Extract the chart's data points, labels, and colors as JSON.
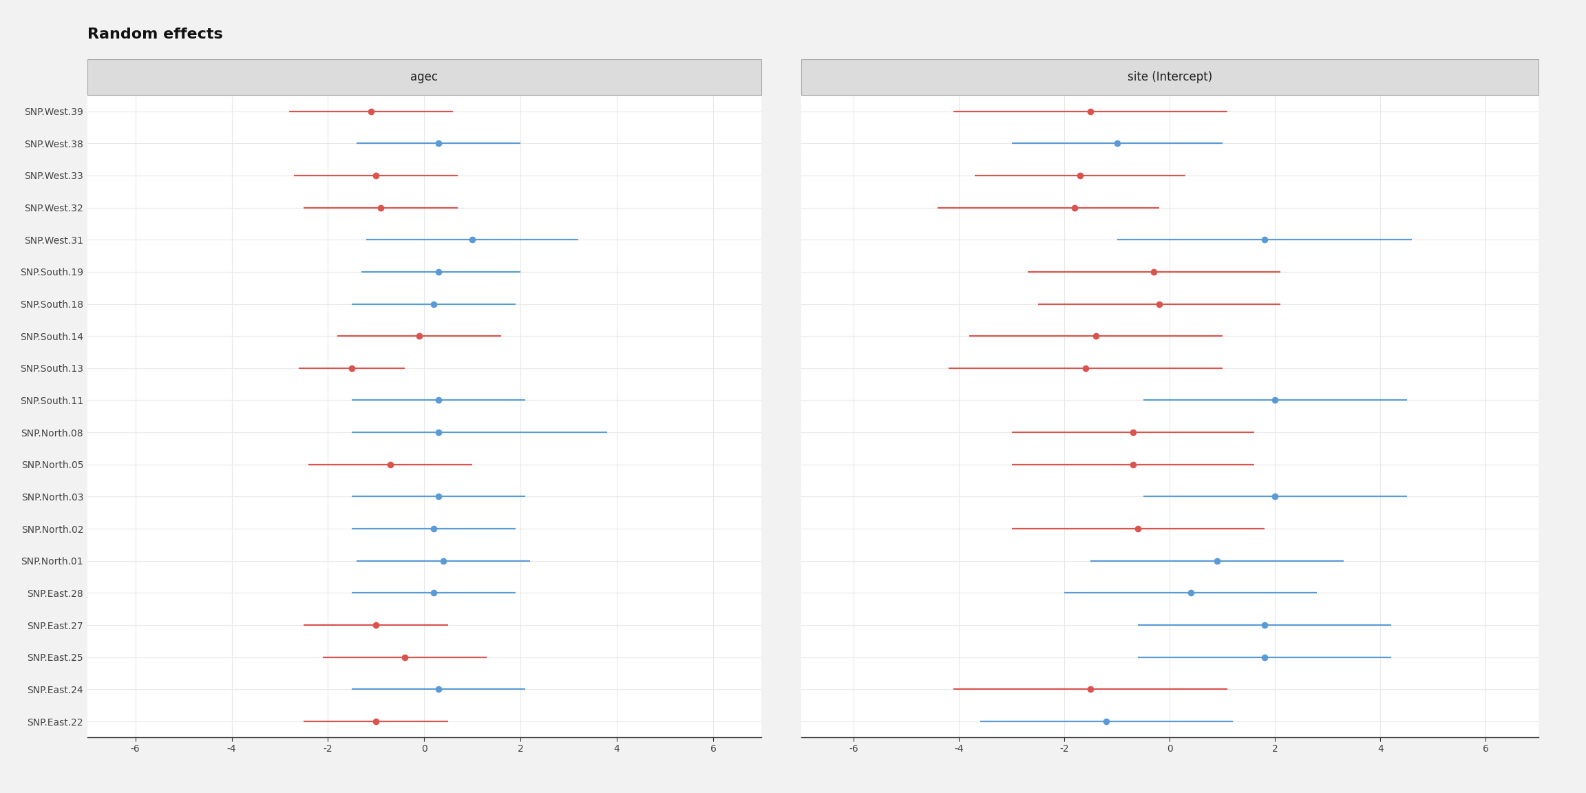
{
  "title": "Random effects",
  "panel1_title": "agec",
  "panel2_title": "site (Intercept)",
  "ylabels": [
    "SNP.West.39",
    "SNP.West.38",
    "SNP.West.33",
    "SNP.West.32",
    "SNP.West.31",
    "SNP.South.19",
    "SNP.South.18",
    "SNP.South.14",
    "SNP.South.13",
    "SNP.South.11",
    "SNP.North.08",
    "SNP.North.05",
    "SNP.North.03",
    "SNP.North.02",
    "SNP.North.01",
    "SNP.East.28",
    "SNP.East.27",
    "SNP.East.25",
    "SNP.East.24",
    "SNP.East.22"
  ],
  "agec": {
    "est": [
      -1.1,
      0.3,
      -1.0,
      -0.9,
      1.0,
      0.3,
      0.2,
      -0.1,
      -1.5,
      0.3,
      0.3,
      -0.7,
      0.3,
      0.2,
      0.4,
      0.2,
      -1.0,
      -0.4,
      0.3,
      -1.0
    ],
    "lo": [
      -2.8,
      -1.4,
      -2.7,
      -2.5,
      -1.2,
      -1.3,
      -1.5,
      -1.8,
      -2.6,
      -1.5,
      -1.5,
      -2.4,
      -1.5,
      -1.5,
      -1.4,
      -1.5,
      -2.5,
      -2.1,
      -1.5,
      -2.5
    ],
    "hi": [
      0.6,
      2.0,
      0.7,
      0.7,
      3.2,
      2.0,
      1.9,
      1.6,
      -0.4,
      2.1,
      3.8,
      1.0,
      2.1,
      1.9,
      2.2,
      1.9,
      0.5,
      1.3,
      2.1,
      0.5
    ],
    "colors": [
      "red",
      "blue",
      "red",
      "red",
      "blue",
      "blue",
      "blue",
      "red",
      "red",
      "blue",
      "blue",
      "red",
      "blue",
      "blue",
      "blue",
      "blue",
      "red",
      "red",
      "blue",
      "red"
    ]
  },
  "intercept": {
    "est": [
      -1.5,
      -1.0,
      -1.7,
      -1.8,
      1.8,
      -0.3,
      -0.2,
      -1.4,
      -1.6,
      2.0,
      -0.7,
      -0.7,
      2.0,
      -0.6,
      0.9,
      0.4,
      1.8,
      1.8,
      -1.5,
      -1.2
    ],
    "lo": [
      -4.1,
      -3.0,
      -3.7,
      -4.4,
      -1.0,
      -2.7,
      -2.5,
      -3.8,
      -4.2,
      -0.5,
      -3.0,
      -3.0,
      -0.5,
      -3.0,
      -1.5,
      -2.0,
      -0.6,
      -0.6,
      -4.1,
      -3.6
    ],
    "hi": [
      1.1,
      1.0,
      0.3,
      -0.2,
      4.6,
      2.1,
      2.1,
      1.0,
      1.0,
      4.5,
      1.6,
      1.6,
      4.5,
      1.8,
      3.3,
      2.8,
      4.2,
      4.2,
      1.1,
      1.2
    ],
    "colors": [
      "red",
      "blue",
      "red",
      "red",
      "blue",
      "red",
      "red",
      "red",
      "red",
      "blue",
      "red",
      "red",
      "blue",
      "red",
      "blue",
      "blue",
      "blue",
      "blue",
      "red",
      "blue"
    ]
  },
  "xlim": [
    -7,
    7
  ],
  "xticks": [
    -6,
    -4,
    -2,
    0,
    2,
    4,
    6
  ],
  "outer_bg": "#f2f2f2",
  "panel_bg": "#ffffff",
  "strip_bg": "#dcdcdc",
  "strip_border": "#aaaaaa",
  "grid_color": "#e8e8e8",
  "axis_color": "#333333",
  "red_color": "#d9534f",
  "blue_color": "#5b9bd5",
  "title_fontsize": 16,
  "panel_title_fontsize": 12,
  "label_fontsize": 10,
  "tick_fontsize": 10,
  "marker_size": 7,
  "line_width": 1.6
}
